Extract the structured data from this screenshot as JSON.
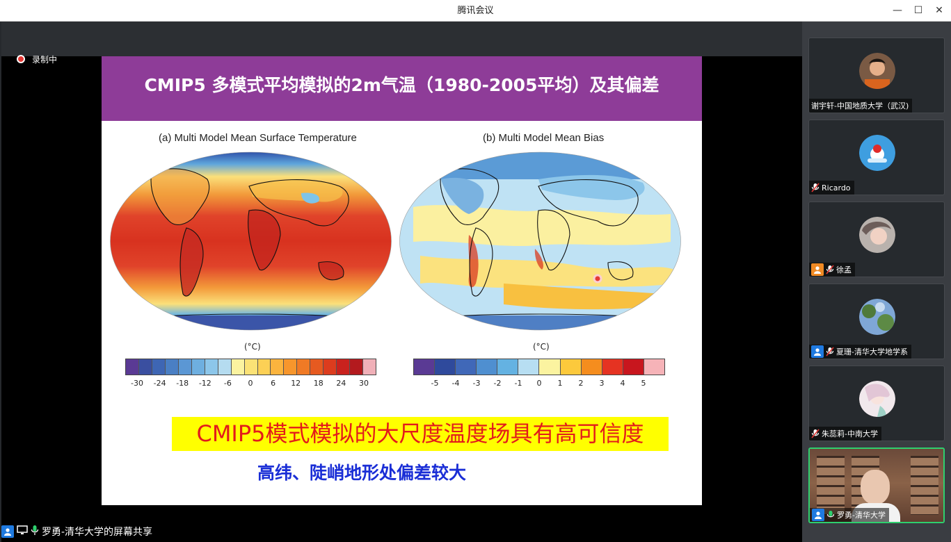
{
  "window": {
    "title": "腾讯会议",
    "minimize": "—",
    "maximize": "☐",
    "close": "✕"
  },
  "recording": {
    "label": "录制中"
  },
  "slide": {
    "title": "CMIP5 多模式平均模拟的2m气温（1980-2005平均）及其偏差",
    "map_a": {
      "title": "(a) Multi Model Mean Surface Temperature",
      "unit": "(°C)",
      "ticks": [
        "-30",
        "-24",
        "-18",
        "-12",
        "-6",
        "0",
        "6",
        "12",
        "18",
        "24",
        "30"
      ],
      "colors": [
        "#5a3a94",
        "#3a4fa0",
        "#3e66b4",
        "#4a7fc4",
        "#5b97d4",
        "#6eafe0",
        "#8cc6ea",
        "#b5dcf0",
        "#fbf3a0",
        "#fbe276",
        "#fcd055",
        "#fbb43e",
        "#f7962c",
        "#f07a25",
        "#e65a20",
        "#dc3c1e",
        "#c9221e",
        "#b31a1e",
        "#f0b0b8"
      ]
    },
    "map_b": {
      "title": "(b) Multi Model Mean Bias",
      "unit": "(°C)",
      "ticks": [
        "-5",
        "-4",
        "-3",
        "-2",
        "-1",
        "0",
        "1",
        "2",
        "3",
        "4",
        "5"
      ],
      "colors": [
        "#5a3a94",
        "#2f4a9c",
        "#4068b8",
        "#4f8fd0",
        "#64b2e2",
        "#b7def2",
        "#fbf3a0",
        "#fcc93c",
        "#f58d1e",
        "#e53322",
        "#c8161e",
        "#f6b3b8"
      ]
    },
    "highlight": "CMIP5模式模拟的大尺度温度场具有高可信度",
    "subtext": "高纬、陡峭地形处偏差较大"
  },
  "participants": [
    {
      "name": "谢宇轩-中国地质大学（武汉)",
      "muted": false,
      "icon": "none"
    },
    {
      "name": "Ricardo",
      "muted": true,
      "icon": "none"
    },
    {
      "name": "徐孟",
      "muted": true,
      "icon": "user-orange"
    },
    {
      "name": "夏珊-清华大学地学系",
      "muted": true,
      "icon": "user-blue"
    },
    {
      "name": "朱蕊莉-中南大学",
      "muted": true,
      "icon": "none"
    },
    {
      "name": "罗勇-清华大学",
      "muted": false,
      "icon": "user-blue"
    }
  ],
  "share": {
    "label": "罗勇-清华大学的屏幕共享"
  }
}
